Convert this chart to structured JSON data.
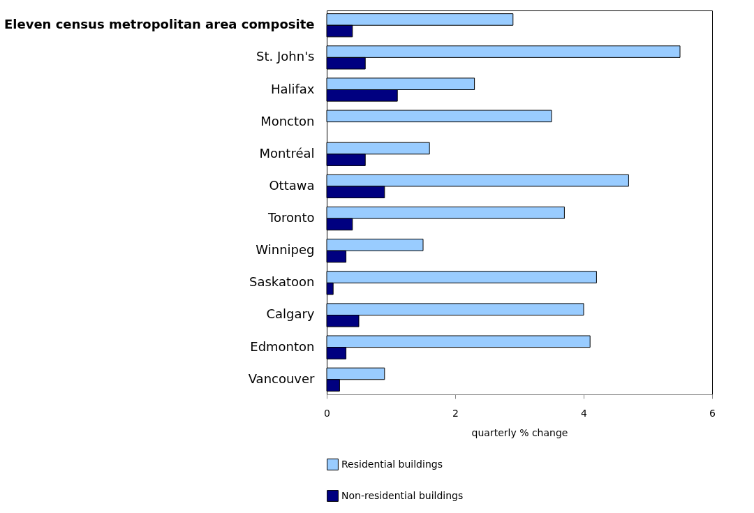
{
  "chart_data": {
    "type": "bar",
    "orientation": "horizontal",
    "xlabel": "quarterly % change",
    "categories": [
      "Eleven census metropolitan area composite",
      "St. John's",
      "Halifax",
      "Moncton",
      "Montréal",
      "Ottawa",
      "Toronto",
      "Winnipeg",
      "Saskatoon",
      "Calgary",
      "Edmonton",
      "Vancouver"
    ],
    "series": [
      {
        "name": "Residential buildings",
        "color": "#99ccff",
        "values": [
          2.9,
          5.5,
          2.3,
          3.5,
          1.6,
          4.7,
          3.7,
          1.5,
          4.2,
          4.0,
          4.1,
          0.9
        ]
      },
      {
        "name": "Non-residential buildings",
        "color": "#000080",
        "values": [
          0.4,
          0.6,
          1.1,
          0.0,
          0.6,
          0.9,
          0.4,
          0.3,
          0.1,
          0.5,
          0.3,
          0.2
        ]
      }
    ],
    "xlim": [
      0,
      6
    ],
    "xticks": [
      0,
      2,
      4,
      6
    ],
    "grid": false,
    "legend": "bottom"
  }
}
